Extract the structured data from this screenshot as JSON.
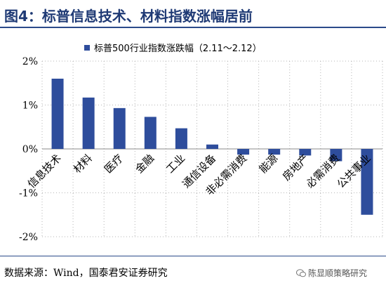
{
  "figure_title": "图4：标普信息技术、材料指数涨幅居前",
  "chart_data": {
    "type": "bar",
    "legend": "标普500行业指数涨跌幅（2.11～2.12）",
    "categories": [
      "信息技术",
      "材料",
      "医疗",
      "金融",
      "工业",
      "通信设备",
      "非必需消费",
      "能源",
      "房地产",
      "必需消费",
      "公共事业"
    ],
    "values": [
      1.6,
      1.17,
      0.93,
      0.73,
      0.47,
      0.1,
      -0.13,
      -0.13,
      -0.15,
      -0.28,
      -1.5
    ],
    "ylim": [
      -2,
      2
    ],
    "yticks": [
      -2,
      -1,
      0,
      1,
      2
    ],
    "ytick_labels": [
      "-2%",
      "-1%",
      "0%",
      "1%",
      "2%"
    ],
    "grid": "dotted",
    "legend_position": "top-center",
    "bar_color": "#2e4d9c"
  },
  "source": "数据来源：Wind，国泰君安证券研究",
  "watermark": "陈显顺策略研究",
  "watermark_icon": "wechat-icon"
}
